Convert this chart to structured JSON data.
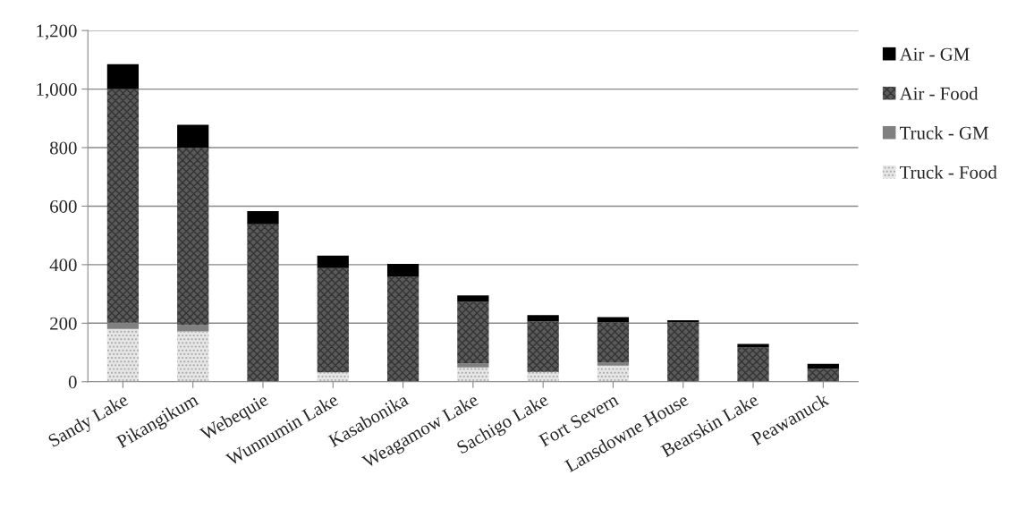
{
  "chart_data": {
    "type": "bar",
    "stacked": true,
    "categories": [
      "Sandy Lake",
      "Pikangikum",
      "Webequie",
      "Wunnumin Lake",
      "Kasabonika",
      "Weagamow Lake",
      "Sachigo Lake",
      "Fort Severn",
      "Lansdowne House",
      "Bearskin Lake",
      "Peawanuck"
    ],
    "series": [
      {
        "name": "Truck - Food",
        "color": "#e6e6e6",
        "values": [
          180,
          172,
          0,
          32,
          0,
          49,
          34,
          55,
          0,
          0,
          0
        ]
      },
      {
        "name": "Truck - GM",
        "color": "#808080",
        "values": [
          22,
          21,
          0,
          0,
          0,
          14,
          0,
          11,
          0,
          0,
          0
        ]
      },
      {
        "name": "Air - Food",
        "color": "#5a5a5a",
        "values": [
          798,
          607,
          538,
          356,
          360,
          210,
          172,
          137,
          203,
          117,
          44
        ]
      },
      {
        "name": "Air - GM",
        "color": "#000000",
        "values": [
          85,
          78,
          45,
          43,
          43,
          22,
          22,
          18,
          7,
          12,
          17
        ]
      }
    ],
    "ylim": [
      0,
      1200
    ],
    "yticks": [
      0,
      {
        "value": 200,
        "label": "200"
      },
      {
        "value": 400,
        "label": "400"
      },
      {
        "value": 600,
        "label": "600"
      },
      {
        "value": 800,
        "label": "800"
      },
      {
        "value": 1000,
        "label": "1,000"
      },
      {
        "value": 1200,
        "label": "1,200"
      }
    ],
    "grid": "y",
    "legend": "right"
  }
}
